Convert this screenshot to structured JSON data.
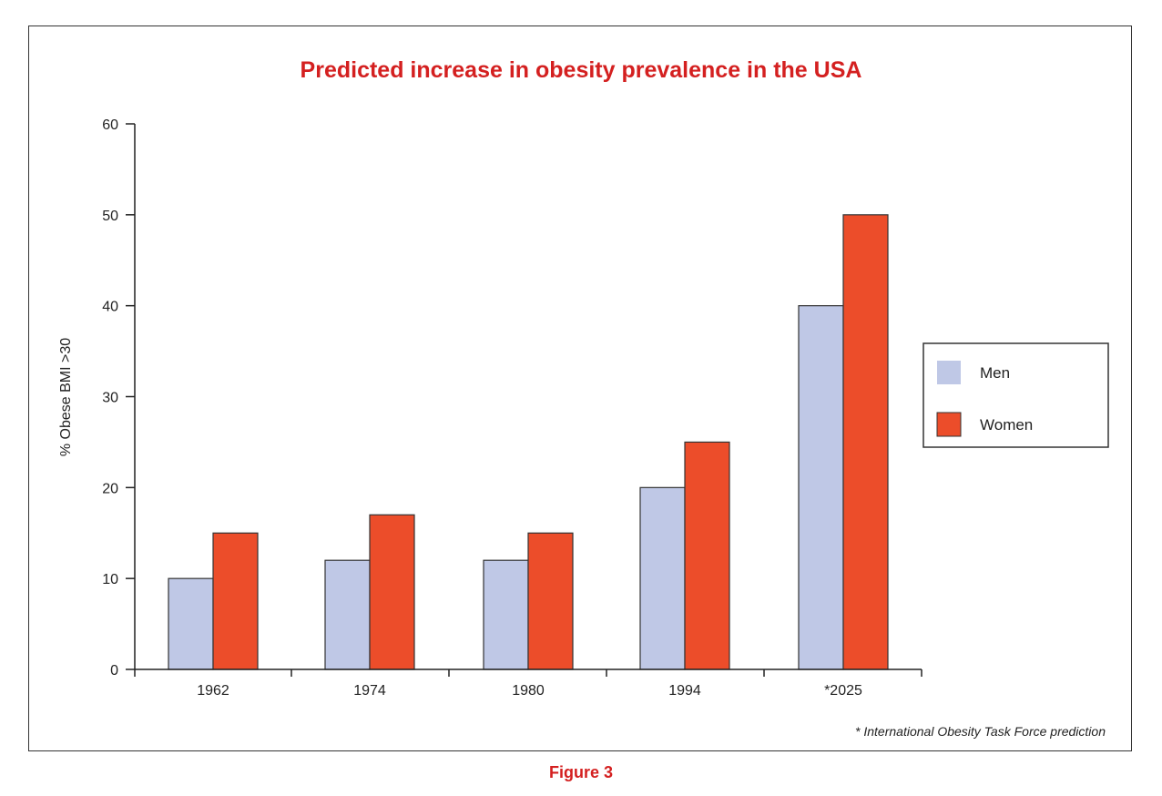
{
  "chart_data": {
    "type": "bar",
    "title": "Predicted increase in obesity prevalence in the USA",
    "ylabel": "% Obese BMI >30",
    "xlabel": "",
    "categories": [
      "1962",
      "1974",
      "1980",
      "1994",
      "*2025"
    ],
    "series": [
      {
        "name": "Men",
        "values": [
          10,
          12,
          12,
          20,
          40
        ],
        "color": "#bfc8e6"
      },
      {
        "name": "Women",
        "values": [
          15,
          17,
          15,
          25,
          50
        ],
        "color": "#ec4d2a"
      }
    ],
    "ylim": [
      0,
      60
    ],
    "yticks": [
      0,
      10,
      20,
      30,
      40,
      50,
      60
    ],
    "grid": false,
    "legend": "right",
    "footnote": "* International Obesity Task Force prediction",
    "title_color": "#d42020"
  },
  "caption": "Figure 3"
}
